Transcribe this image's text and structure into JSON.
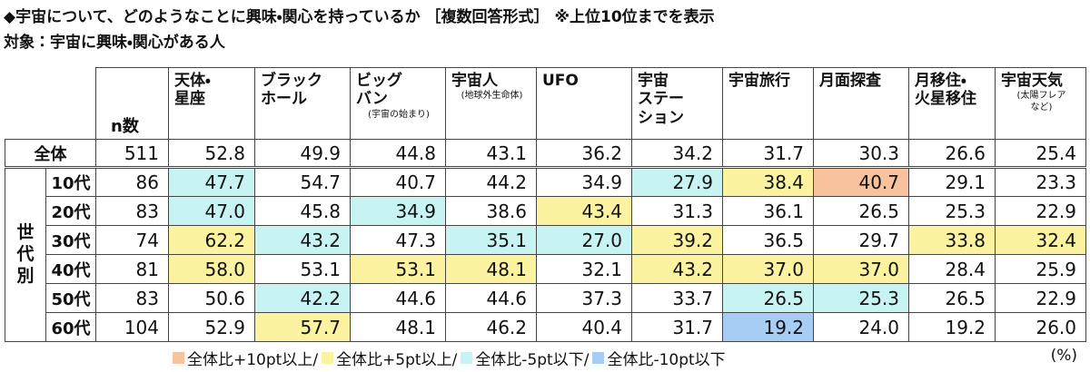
{
  "title": "◆宇宙について、どのようなことに興味・関心を持っているか ［複数回答形式］ ※上位10位までを表示",
  "subtitle": "対象：宇宙に興味・関心がある人",
  "table": {
    "n_header": "n数",
    "columns": [
      {
        "label": "天体・\n星座"
      },
      {
        "label": "ブラック\nホール"
      },
      {
        "label": "ビッグ\nバン",
        "note": "(宇宙の始まり)"
      },
      {
        "label": "宇宙人",
        "note": "(地球外生命体)"
      },
      {
        "label": "UFO"
      },
      {
        "label": "宇宙\nステー\nション"
      },
      {
        "label": "宇宙旅行"
      },
      {
        "label": "月面探査"
      },
      {
        "label": "月移住・\n火星移住"
      },
      {
        "label": "宇宙天気",
        "note": "(太陽フレア\nなど)"
      }
    ],
    "total": {
      "label": "全体",
      "n": "511",
      "values": [
        "52.8",
        "49.9",
        "44.8",
        "43.1",
        "36.2",
        "34.2",
        "31.7",
        "30.3",
        "26.6",
        "25.4"
      ]
    },
    "group_label": "世\n代\n別",
    "rows": [
      {
        "label": "10代",
        "n": "86",
        "values": [
          "47.7",
          "54.7",
          "40.7",
          "44.2",
          "34.9",
          "27.9",
          "38.4",
          "40.7",
          "29.1",
          "23.3"
        ],
        "colors": [
          "#c8f3f3",
          null,
          null,
          null,
          null,
          "#c8f3f3",
          "#fbf3a0",
          "#f8c39c",
          null,
          null
        ]
      },
      {
        "label": "20代",
        "n": "83",
        "values": [
          "47.0",
          "45.8",
          "34.9",
          "38.6",
          "43.4",
          "31.3",
          "36.1",
          "26.5",
          "25.3",
          "22.9"
        ],
        "colors": [
          "#c8f3f3",
          null,
          "#c8f3f3",
          null,
          "#fbf3a0",
          null,
          null,
          null,
          null,
          null
        ]
      },
      {
        "label": "30代",
        "n": "74",
        "values": [
          "62.2",
          "43.2",
          "47.3",
          "35.1",
          "27.0",
          "39.2",
          "36.5",
          "29.7",
          "33.8",
          "32.4"
        ],
        "colors": [
          "#fbf3a0",
          "#c8f3f3",
          null,
          "#c8f3f3",
          "#c8f3f3",
          "#fbf3a0",
          null,
          null,
          "#fbf3a0",
          "#fbf3a0"
        ]
      },
      {
        "label": "40代",
        "n": "81",
        "values": [
          "58.0",
          "53.1",
          "53.1",
          "48.1",
          "32.1",
          "43.2",
          "37.0",
          "37.0",
          "28.4",
          "25.9"
        ],
        "colors": [
          "#fbf3a0",
          null,
          "#fbf3a0",
          "#fbf3a0",
          null,
          "#fbf3a0",
          "#fbf3a0",
          "#fbf3a0",
          null,
          null
        ]
      },
      {
        "label": "50代",
        "n": "83",
        "values": [
          "50.6",
          "42.2",
          "44.6",
          "44.6",
          "37.3",
          "33.7",
          "26.5",
          "25.3",
          "26.5",
          "22.9"
        ],
        "colors": [
          null,
          "#c8f3f3",
          null,
          null,
          null,
          null,
          "#c8f3f3",
          "#c8f3f3",
          null,
          null
        ]
      },
      {
        "label": "60代",
        "n": "104",
        "values": [
          "52.9",
          "57.7",
          "48.1",
          "46.2",
          "40.4",
          "31.7",
          "19.2",
          "24.0",
          "19.2",
          "26.0"
        ],
        "colors": [
          null,
          "#fbf3a0",
          null,
          null,
          null,
          null,
          "#a8cdf5",
          null,
          null,
          null
        ]
      }
    ]
  },
  "legend": [
    {
      "label": "全体比+10pt以上/",
      "color": "#f8c39c"
    },
    {
      "label": "全体比+5pt以上/",
      "color": "#fbf3a0"
    },
    {
      "label": "全体比-5pt以下/",
      "color": "#c8f3f3"
    },
    {
      "label": "全体比-10pt以下",
      "color": "#a8cdf5"
    }
  ],
  "unit": "(%)"
}
